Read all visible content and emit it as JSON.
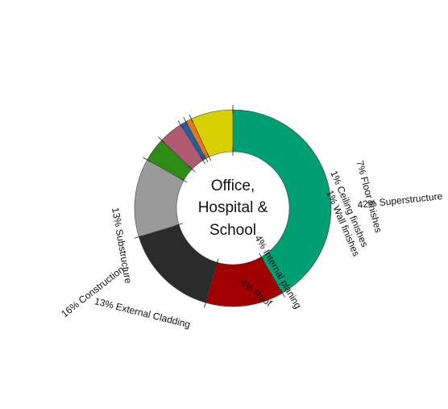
{
  "chart_data": {
    "type": "pie",
    "variant": "donut",
    "center_text": [
      "Office,",
      "Hospital &",
      "School"
    ],
    "slices": [
      {
        "label": "42% Superstructure",
        "value": 42,
        "color": "#009e73"
      },
      {
        "label": "13% Substructure",
        "value": 13,
        "color": "#a00000"
      },
      {
        "label": "16% Construction",
        "value": 16,
        "color": "#2b2b2b"
      },
      {
        "label": "13% External Cladding",
        "value": 13,
        "color": "#9a9a9a"
      },
      {
        "label": "4% Roof",
        "value": 4,
        "color": "#2e8b16"
      },
      {
        "label": "4% Internal planing",
        "value": 4,
        "color": "#b05a70"
      },
      {
        "label": "1% Wall finishes",
        "value": 1,
        "color": "#1f5fa6"
      },
      {
        "label": "1% Ceiling finishes",
        "value": 1,
        "color": "#e07820"
      },
      {
        "label": "7% Floor finishes",
        "value": 7,
        "color": "#d8d000"
      }
    ]
  }
}
